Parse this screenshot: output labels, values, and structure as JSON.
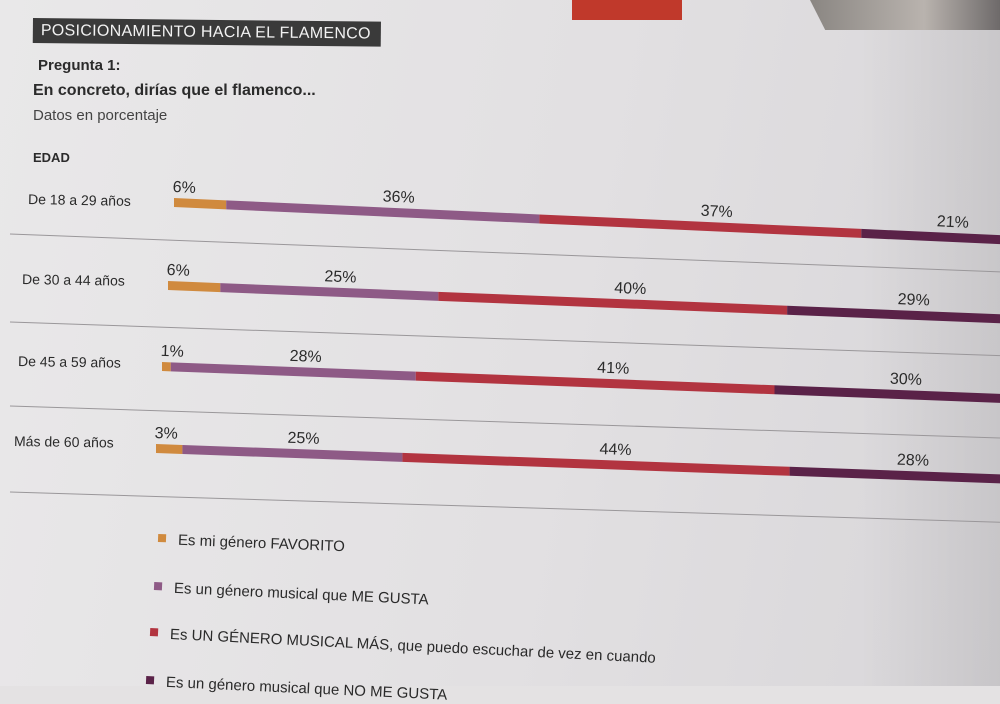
{
  "header": {
    "section_title": "POSICIONAMIENTO HACIA EL FLAMENCO",
    "question_number": "Pregunta 1:",
    "question_text": "En concreto, dirías que el flamenco...",
    "subtitle": "Datos en porcentaje",
    "axis_label": "EDAD"
  },
  "chart_data": {
    "type": "bar",
    "orientation": "horizontal",
    "stacked": true,
    "ylabel": "EDAD",
    "categories": [
      "De 18 a 29 años",
      "De 30 a 44 años",
      "De 45 a 59 años",
      "Más de 60 años"
    ],
    "series": [
      {
        "name": "Es mi género FAVORITO",
        "color": "#d08a3e",
        "values": [
          6,
          6,
          1,
          3
        ]
      },
      {
        "name": "Es un género musical que ME GUSTA",
        "color": "#8e5a86",
        "values": [
          36,
          25,
          28,
          25
        ]
      },
      {
        "name": "Es UN GÉNERO MUSICAL MÁS, que puedo escuchar de vez en cuando",
        "color": "#b23440",
        "values": [
          37,
          40,
          41,
          44
        ]
      },
      {
        "name": "Es un género musical que NO ME GUSTA",
        "color": "#5a2248",
        "values": [
          21,
          29,
          30,
          28
        ]
      }
    ],
    "value_suffix": "%",
    "legend_position": "bottom",
    "grid": false
  }
}
